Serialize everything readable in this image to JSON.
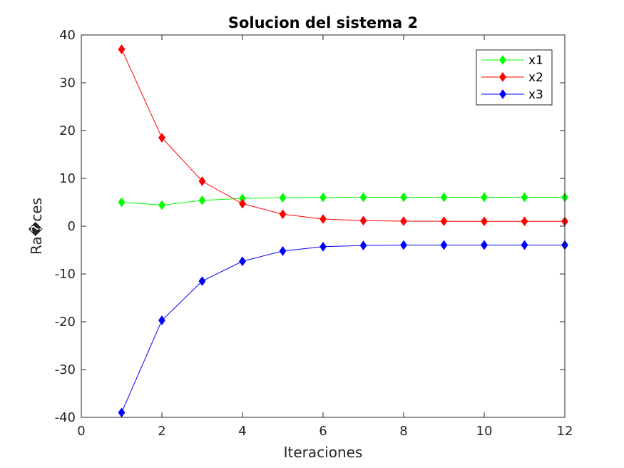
{
  "chart_data": {
    "type": "line",
    "title": "Solucion del sistema 2",
    "xlabel": "Iteraciones",
    "ylabel": "Ra�ces",
    "xlim": [
      0,
      12
    ],
    "ylim": [
      -40,
      40
    ],
    "xticks": [
      0,
      2,
      4,
      6,
      8,
      10,
      12
    ],
    "yticks": [
      -40,
      -30,
      -20,
      -10,
      0,
      10,
      20,
      30,
      40
    ],
    "grid": false,
    "legend_position": "top-right",
    "marker": "diamond",
    "x": [
      1,
      2,
      3,
      4,
      5,
      6,
      7,
      8,
      9,
      10,
      11,
      12
    ],
    "series": [
      {
        "name": "x1",
        "color": "#00ff00",
        "values": [
          5.0,
          4.4,
          5.4,
          5.8,
          5.95,
          6.0,
          6.05,
          6.05,
          6.05,
          6.05,
          6.05,
          6.05
        ]
      },
      {
        "name": "x2",
        "color": "#ff0000",
        "values": [
          37.0,
          18.5,
          9.4,
          4.7,
          2.5,
          1.5,
          1.15,
          1.05,
          1.02,
          1.0,
          1.0,
          1.0
        ]
      },
      {
        "name": "x3",
        "color": "#0000ff",
        "values": [
          -39.0,
          -19.7,
          -11.5,
          -7.35,
          -5.2,
          -4.3,
          -4.05,
          -3.95,
          -3.95,
          -3.95,
          -3.95,
          -3.95
        ]
      }
    ]
  }
}
